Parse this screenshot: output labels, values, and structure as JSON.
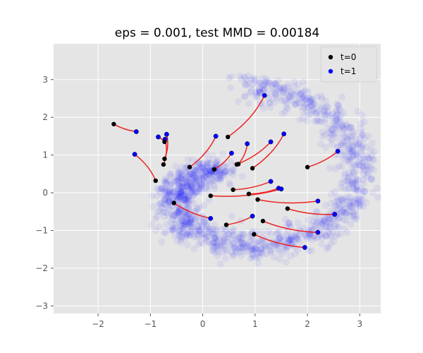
{
  "chart_data": {
    "type": "scatter",
    "title": "eps = 0.001, test MMD = 0.00184",
    "xlabel": "",
    "ylabel": "",
    "xlim": [
      -2.85,
      3.4
    ],
    "ylim": [
      -3.2,
      3.95
    ],
    "xticks": [
      -2,
      -1,
      0,
      1,
      2,
      3
    ],
    "xtick_labels": [
      "−2",
      "−1",
      "0",
      "1",
      "2",
      "3"
    ],
    "yticks": [
      -3,
      -2,
      -1,
      0,
      1,
      2,
      3
    ],
    "ytick_labels": [
      "−3",
      "−2",
      "−1",
      "0",
      "1",
      "2",
      "3"
    ],
    "grid": true,
    "legend_placement": "top-right",
    "legend": [
      {
        "label": "t=0",
        "color": "#000000"
      },
      {
        "label": "t=1",
        "color": "#0000ff"
      }
    ],
    "background_cloud": {
      "description": "spiral-shaped density of target samples",
      "color": "#0000ff",
      "alpha": 0.06
    },
    "trajectories": [
      {
        "start": [
          -1.7,
          1.82
        ],
        "end": [
          -1.27,
          1.62
        ]
      },
      {
        "start": [
          -0.73,
          1.35
        ],
        "end": [
          -0.85,
          1.48
        ]
      },
      {
        "start": [
          -0.73,
          0.9
        ],
        "end": [
          -0.69,
          1.55
        ]
      },
      {
        "start": [
          -0.75,
          0.75
        ],
        "end": [
          -0.72,
          1.42
        ]
      },
      {
        "start": [
          -0.9,
          0.32
        ],
        "end": [
          -1.3,
          1.02
        ]
      },
      {
        "start": [
          -0.25,
          0.68
        ],
        "end": [
          0.25,
          1.5
        ]
      },
      {
        "start": [
          0.22,
          0.62
        ],
        "end": [
          0.55,
          1.05
        ]
      },
      {
        "start": [
          0.48,
          1.48
        ],
        "end": [
          1.18,
          2.58
        ]
      },
      {
        "start": [
          0.65,
          0.75
        ],
        "end": [
          1.3,
          1.35
        ]
      },
      {
        "start": [
          0.68,
          0.76
        ],
        "end": [
          0.85,
          1.3
        ]
      },
      {
        "start": [
          0.95,
          0.65
        ],
        "end": [
          1.55,
          1.56
        ]
      },
      {
        "start": [
          2.0,
          0.68
        ],
        "end": [
          2.58,
          1.1
        ]
      },
      {
        "start": [
          0.58,
          0.08
        ],
        "end": [
          1.3,
          0.3
        ]
      },
      {
        "start": [
          0.88,
          -0.03
        ],
        "end": [
          1.45,
          0.12
        ]
      },
      {
        "start": [
          0.15,
          -0.08
        ],
        "end": [
          1.5,
          0.1
        ]
      },
      {
        "start": [
          1.05,
          -0.18
        ],
        "end": [
          2.2,
          -0.22
        ]
      },
      {
        "start": [
          1.62,
          -0.42
        ],
        "end": [
          2.52,
          -0.57
        ]
      },
      {
        "start": [
          -0.55,
          -0.27
        ],
        "end": [
          0.15,
          -0.68
        ]
      },
      {
        "start": [
          0.45,
          -0.85
        ],
        "end": [
          0.95,
          -0.62
        ]
      },
      {
        "start": [
          1.15,
          -0.75
        ],
        "end": [
          2.2,
          -1.05
        ]
      },
      {
        "start": [
          0.98,
          -1.1
        ],
        "end": [
          1.95,
          -1.45
        ]
      }
    ],
    "trajectory_color": "#ee2222"
  }
}
